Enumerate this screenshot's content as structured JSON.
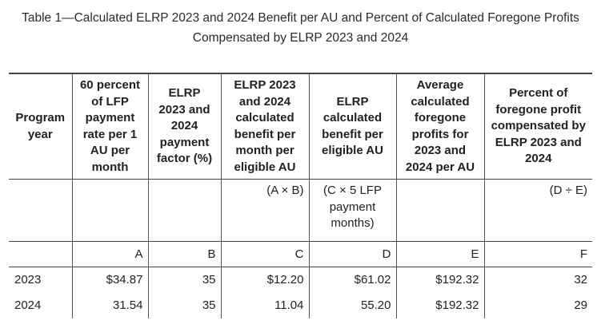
{
  "caption": {
    "line1": "Table 1—Calculated ELRP 2023 and 2024 Benefit per AU and Percent of Calculated Foregone Profits",
    "line2": "Compensated by ELRP 2023 and 2024"
  },
  "table": {
    "headers": [
      [
        "Program",
        "year"
      ],
      [
        "60 percent",
        "of LFP",
        "payment",
        "rate per 1",
        "AU per",
        "month"
      ],
      [
        "ELRP",
        "2023 and",
        "2024",
        "payment",
        "factor (%)"
      ],
      [
        "ELRP 2023",
        "and 2024",
        "calculated",
        "benefit per",
        "month per",
        "eligible AU"
      ],
      [
        "ELRP",
        "calculated",
        "benefit per",
        "eligible AU"
      ],
      [
        "Average",
        "calculated",
        "foregone",
        "profits for",
        "2023 and",
        "2024 per AU"
      ],
      [
        "Percent of",
        "foregone profit",
        "compensated by",
        "ELRP 2023 and",
        "2024"
      ]
    ],
    "formulas": {
      "c3": "(A × B)",
      "c4": [
        "(C × 5 LFP",
        "payment",
        "months)"
      ],
      "c6": "(D ÷ E)"
    },
    "letters": [
      "",
      "A",
      "B",
      "C",
      "D",
      "E",
      "F"
    ],
    "rows": [
      [
        "2023",
        "$34.87",
        "35",
        "$12.20",
        "$61.02",
        "$192.32",
        "32"
      ],
      [
        "2024",
        "31.54",
        "35",
        "11.04",
        "55.20",
        "$192.32",
        "29"
      ]
    ]
  }
}
